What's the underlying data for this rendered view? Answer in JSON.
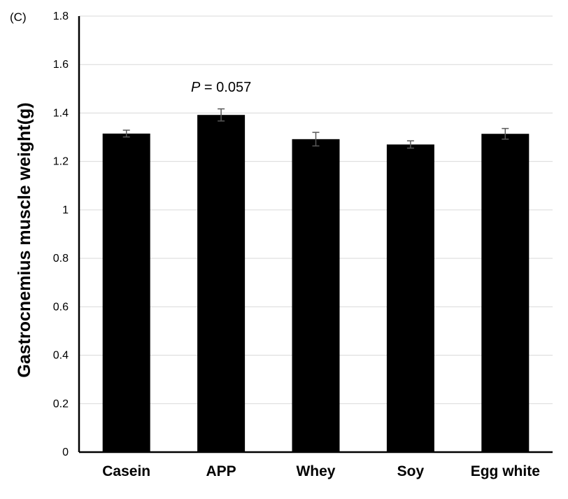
{
  "panel_label": "(C)",
  "chart_data": {
    "type": "bar",
    "title": "",
    "xlabel": "",
    "ylabel": "Gastrocnemius muscle weight(g)",
    "categories": [
      "Casein",
      "APP",
      "Whey",
      "Soy",
      "Egg white"
    ],
    "values": [
      1.315,
      1.392,
      1.292,
      1.27,
      1.314
    ],
    "errors": [
      0.014,
      0.025,
      0.028,
      0.015,
      0.022
    ],
    "ylim": [
      0,
      1.8
    ],
    "yticks": [
      0,
      0.2,
      0.4,
      0.6,
      0.8,
      1,
      1.2,
      1.4,
      1.6,
      1.8
    ],
    "ytick_labels": [
      "0",
      "0.2",
      "0.4",
      "0.6",
      "0.8",
      "1",
      "1.2",
      "1.4",
      "1.6",
      "1.8"
    ],
    "grid": true,
    "legend": "none",
    "annotations": [
      {
        "category": "APP",
        "italic": "P",
        "text": " = 0.057"
      }
    ],
    "colors": {
      "bar": "#000000",
      "error_bar": "#595959",
      "grid": "#d9d9d9",
      "axis": "#000000"
    }
  }
}
